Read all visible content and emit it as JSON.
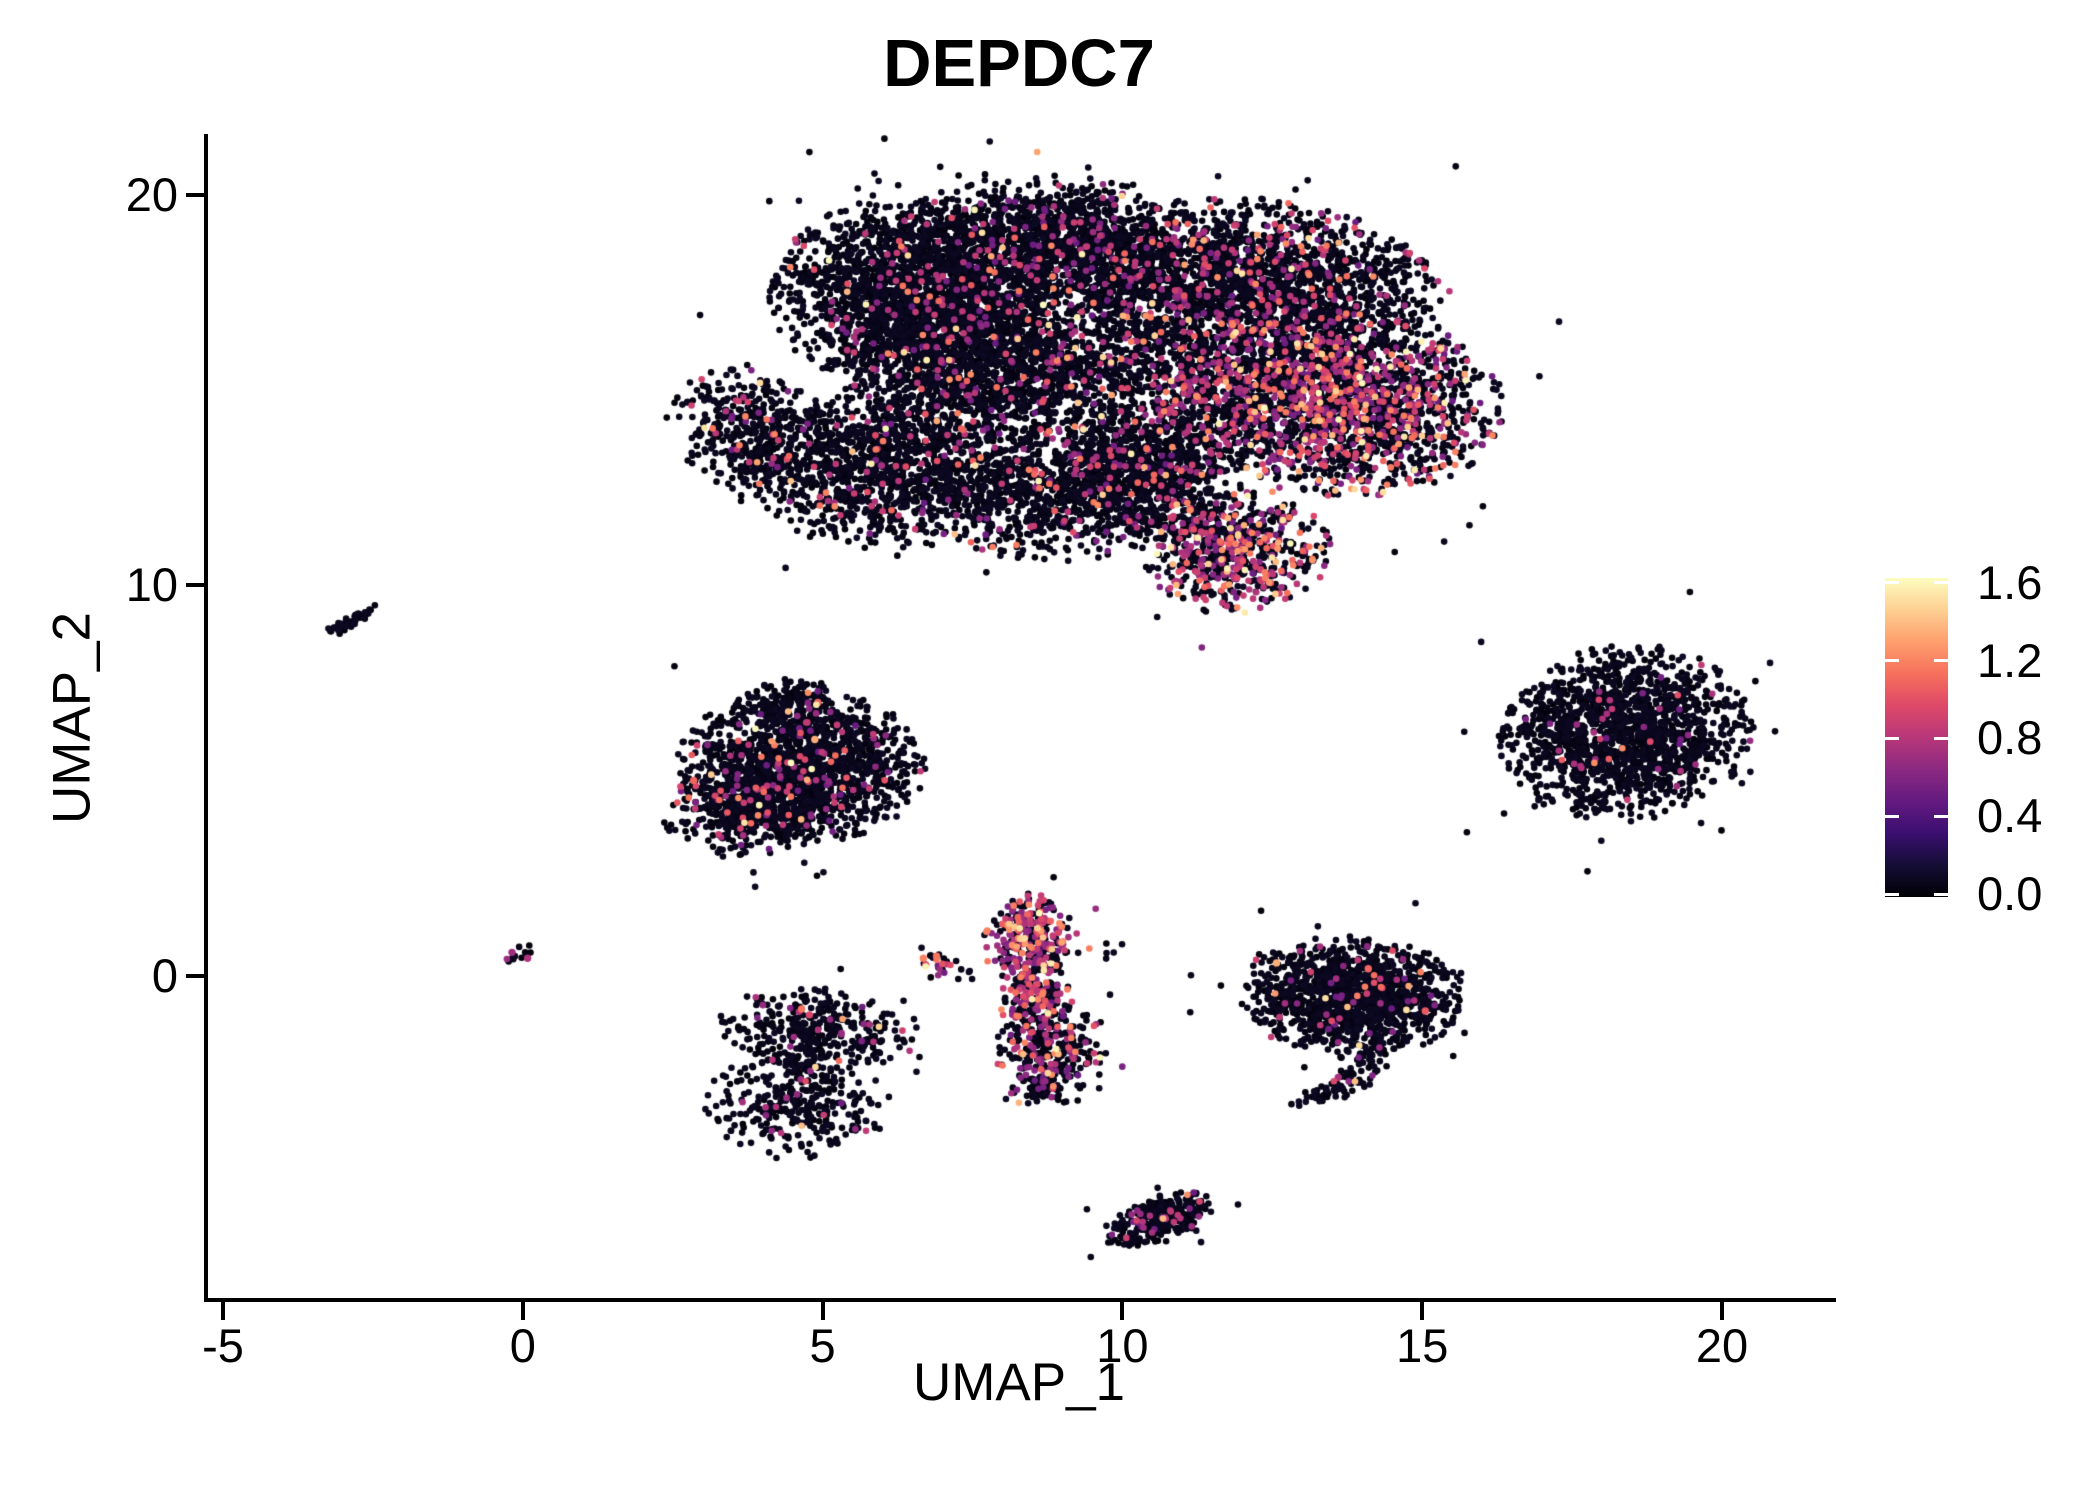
{
  "title": "DEPDC7",
  "chart_data": {
    "type": "scatter",
    "title": "DEPDC7",
    "xlabel": "UMAP_1",
    "ylabel": "UMAP_2",
    "xlim": [
      -5.25,
      21.8
    ],
    "ylim": [
      -8.3,
      21.5
    ],
    "grid": false,
    "x_ticks": {
      "values": [
        -5,
        0,
        5,
        10,
        15,
        20
      ],
      "labels": [
        "-5",
        "0",
        "5",
        "10",
        "15",
        "20"
      ]
    },
    "y_ticks": {
      "values": [
        0,
        10,
        20
      ],
      "labels": [
        "0",
        "10",
        "20"
      ]
    },
    "legend": {
      "position": "right",
      "title": "",
      "vmin": 0.0,
      "vmax": 1.63,
      "tick_values": [
        0.0,
        0.4,
        0.8,
        1.2,
        1.6
      ],
      "tick_labels": [
        "0.0",
        "0.4",
        "0.8",
        "1.2",
        "1.6"
      ],
      "palette": "magma",
      "palette_stops": [
        "#000004",
        "#140e36",
        "#3b0f70",
        "#641a80",
        "#8c2981",
        "#b73779",
        "#de4968",
        "#f7705c",
        "#fe9f6d",
        "#fecf92",
        "#fcfdbf"
      ]
    },
    "point_radius_px": 3.3,
    "clusters": [
      {
        "name": "top-left-tip",
        "cx": 3.9,
        "cy": 13.8,
        "sx": 0.65,
        "sy": 0.9,
        "rot": 30,
        "n": 450,
        "frac": 0.05,
        "heat": 0
      },
      {
        "name": "top-upper-left",
        "cx": 6.3,
        "cy": 17.5,
        "sx": 1.05,
        "sy": 1.15,
        "rot": 0,
        "n": 1700,
        "frac": 0.06,
        "heat": 0
      },
      {
        "name": "top-crown",
        "cx": 9.0,
        "cy": 18.8,
        "sx": 1.35,
        "sy": 0.8,
        "rot": -5,
        "n": 1500,
        "frac": 0.08,
        "heat": 0
      },
      {
        "name": "top-center",
        "cx": 8.0,
        "cy": 15.9,
        "sx": 1.3,
        "sy": 1.15,
        "rot": 0,
        "n": 1700,
        "frac": 0.07,
        "heat": 0
      },
      {
        "name": "top-lower-left",
        "cx": 6.2,
        "cy": 13.1,
        "sx": 1.15,
        "sy": 1.05,
        "rot": 20,
        "n": 1250,
        "frac": 0.06,
        "heat": 0
      },
      {
        "name": "top-lower-mid",
        "cx": 9.3,
        "cy": 12.4,
        "sx": 1.25,
        "sy": 0.85,
        "rot": 10,
        "n": 1000,
        "frac": 0.1,
        "heat": 0
      },
      {
        "name": "top-upper-right",
        "cx": 12.2,
        "cy": 17.7,
        "sx": 1.5,
        "sy": 1.05,
        "rot": -10,
        "n": 2000,
        "frac": 0.14,
        "heat": 0.2
      },
      {
        "name": "top-right-hot",
        "cx": 13.6,
        "cy": 14.7,
        "sx": 1.35,
        "sy": 1.15,
        "rot": -15,
        "n": 2100,
        "frac": 0.3,
        "heat": 0.55
      },
      {
        "name": "top-bottom-hot",
        "cx": 11.9,
        "cy": 10.9,
        "sx": 0.75,
        "sy": 0.8,
        "rot": 0,
        "n": 650,
        "frac": 0.38,
        "heat": 0.55
      },
      {
        "name": "top-bridge",
        "cx": 10.6,
        "cy": 14.9,
        "sx": 1.0,
        "sy": 1.2,
        "rot": 0,
        "n": 900,
        "frac": 0.14,
        "heat": 0.2
      },
      {
        "name": "top-bridge-low",
        "cx": 10.3,
        "cy": 12.9,
        "sx": 0.7,
        "sy": 0.6,
        "rot": 30,
        "n": 350,
        "frac": 0.12,
        "heat": 0
      },
      {
        "name": "left-dash",
        "cx": -2.9,
        "cy": 9.05,
        "sx": 0.3,
        "sy": 0.07,
        "rot": 43,
        "n": 55,
        "frac": 0,
        "heat": 0
      },
      {
        "name": "midleft-main",
        "cx": 4.65,
        "cy": 5.35,
        "sx": 1.0,
        "sy": 0.95,
        "rot": 0,
        "n": 1450,
        "frac": 0.06,
        "heat": 0
      },
      {
        "name": "midleft-lower",
        "cx": 3.85,
        "cy": 4.35,
        "sx": 0.75,
        "sy": 0.6,
        "rot": 15,
        "n": 450,
        "frac": 0.12,
        "heat": 0
      },
      {
        "name": "midleft-top",
        "cx": 4.6,
        "cy": 6.9,
        "sx": 0.5,
        "sy": 0.35,
        "rot": 0,
        "n": 130,
        "frac": 0.04,
        "heat": 0
      },
      {
        "name": "right-oval",
        "cx": 18.4,
        "cy": 6.2,
        "sx": 1.0,
        "sy": 1.1,
        "rot": -20,
        "n": 1550,
        "frac": 0.025,
        "heat": 0
      },
      {
        "name": "origin-dot",
        "cx": -0.05,
        "cy": 0.52,
        "sx": 0.18,
        "sy": 0.15,
        "rot": 0,
        "n": 13,
        "frac": 0.1,
        "heat": 0
      },
      {
        "name": "lowleft-upper",
        "cx": 4.9,
        "cy": -1.35,
        "sx": 0.85,
        "sy": 0.5,
        "rot": -10,
        "n": 330,
        "frac": 0.05,
        "heat": 0
      },
      {
        "name": "lowleft-lower",
        "cx": 4.55,
        "cy": -3.3,
        "sx": 0.75,
        "sy": 0.7,
        "rot": 0,
        "n": 300,
        "frac": 0.05,
        "heat": 0
      },
      {
        "name": "lowleft-neck",
        "cx": 4.75,
        "cy": -2.3,
        "sx": 0.3,
        "sy": 0.45,
        "rot": 0,
        "n": 70,
        "frac": 0.03,
        "heat": 0
      },
      {
        "name": "central-top-hot",
        "cx": 8.45,
        "cy": 0.95,
        "sx": 0.36,
        "sy": 0.55,
        "rot": 0,
        "n": 280,
        "frac": 0.5,
        "heat": 0.6
      },
      {
        "name": "central-mid-hot",
        "cx": 8.55,
        "cy": -0.5,
        "sx": 0.3,
        "sy": 0.55,
        "rot": 0,
        "n": 200,
        "frac": 0.4,
        "heat": 0.5
      },
      {
        "name": "central-low",
        "cx": 8.8,
        "cy": -1.9,
        "sx": 0.45,
        "sy": 0.6,
        "rot": 0,
        "n": 280,
        "frac": 0.3,
        "heat": 0.3
      },
      {
        "name": "central-foot",
        "cx": 8.6,
        "cy": -2.9,
        "sx": 0.3,
        "sy": 0.25,
        "rot": 0,
        "n": 60,
        "frac": 0.1,
        "heat": 0
      },
      {
        "name": "central-satellite",
        "cx": 6.93,
        "cy": 0.4,
        "sx": 0.17,
        "sy": 0.25,
        "rot": 0,
        "n": 20,
        "frac": 0.25,
        "heat": 0.5
      },
      {
        "name": "central-stragglers-r",
        "cx": 9.85,
        "cy": 0.6,
        "sx": 0.25,
        "sy": 0.18,
        "rot": 0,
        "n": 5,
        "frac": 0,
        "heat": 0
      },
      {
        "name": "central-stragglers-l",
        "cx": 7.45,
        "cy": 0.2,
        "sx": 0.25,
        "sy": 0.15,
        "rot": 0,
        "n": 6,
        "frac": 0,
        "heat": 0
      },
      {
        "name": "rightcenter-main",
        "cx": 13.85,
        "cy": -0.55,
        "sx": 0.9,
        "sy": 0.75,
        "rot": -8,
        "n": 1350,
        "frac": 0.04,
        "heat": 0.2
      },
      {
        "name": "rightcenter-tail1",
        "cx": 14.1,
        "cy": -2.0,
        "sx": 0.2,
        "sy": 0.3,
        "rot": 0,
        "n": 30,
        "frac": 0.05,
        "heat": 0
      },
      {
        "name": "rightcenter-tail2",
        "cx": 13.75,
        "cy": -2.7,
        "sx": 0.22,
        "sy": 0.25,
        "rot": 0,
        "n": 35,
        "frac": 0.05,
        "heat": 0
      },
      {
        "name": "rightcenter-tail3",
        "cx": 13.35,
        "cy": -3.05,
        "sx": 0.3,
        "sy": 0.13,
        "rot": 15,
        "n": 30,
        "frac": 0.04,
        "heat": 0
      },
      {
        "name": "bottom-blob",
        "cx": 10.6,
        "cy": -6.25,
        "sx": 0.5,
        "sy": 0.26,
        "rot": 33,
        "n": 310,
        "frac": 0.07,
        "heat": 0.2
      }
    ],
    "accent_points": [
      {
        "x": 4.92,
        "y": 7.0,
        "v": 1.1
      },
      {
        "x": 4.87,
        "y": 6.05,
        "v": 1.35
      },
      {
        "x": 2.85,
        "y": 5.0,
        "v": 1.1
      },
      {
        "x": 4.65,
        "y": -0.85,
        "v": 1.15
      },
      {
        "x": 4.78,
        "y": -1.0,
        "v": 0.95
      },
      {
        "x": -0.18,
        "y": 0.6,
        "v": 0.72
      },
      {
        "x": 0.08,
        "y": 0.45,
        "v": 0.78
      },
      {
        "x": 6.9,
        "y": 0.5,
        "v": 1.15
      },
      {
        "x": 6.68,
        "y": 0.45,
        "v": 1.2
      },
      {
        "x": 6.72,
        "y": 0.28,
        "v": 1.0
      },
      {
        "x": 12.57,
        "y": 0.33,
        "v": 1.35
      },
      {
        "x": 14.1,
        "y": 0.18,
        "v": 1.1
      },
      {
        "x": 15.05,
        "y": -0.9,
        "v": 1.05
      },
      {
        "x": 13.6,
        "y": -2.6,
        "v": 0.75
      }
    ]
  }
}
